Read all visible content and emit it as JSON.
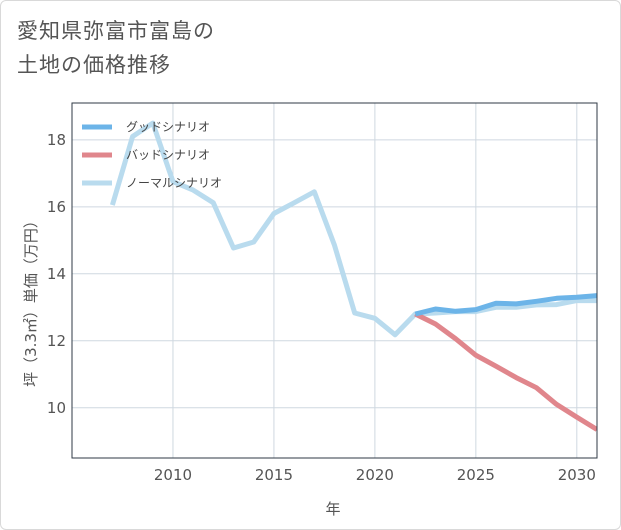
{
  "title": {
    "line1": "愛知県弥富市富島の",
    "line2": "土地の価格推移"
  },
  "chart_data": {
    "type": "line",
    "xlabel": "年",
    "ylabel": "坪（3.3㎡）単価（万円）",
    "xlim": [
      2005,
      2031
    ],
    "ylim": [
      8.5,
      19.1
    ],
    "x_ticks": [
      2010,
      2015,
      2020,
      2025,
      2030
    ],
    "y_ticks": [
      10,
      12,
      14,
      16,
      18
    ],
    "grid": true,
    "legend_position": "top-left",
    "series": [
      {
        "name": "グッドシナリオ",
        "color": "#6cb4e8",
        "x": [
          2022,
          2023,
          2024,
          2025,
          2026,
          2027,
          2028,
          2029,
          2030,
          2031
        ],
        "y": [
          12.8,
          12.95,
          12.88,
          12.93,
          13.12,
          13.1,
          13.18,
          13.27,
          13.3,
          13.35
        ]
      },
      {
        "name": "バッドシナリオ",
        "color": "#e0868c",
        "x": [
          2022,
          2023,
          2024,
          2025,
          2026,
          2027,
          2028,
          2029,
          2030,
          2031
        ],
        "y": [
          12.8,
          12.5,
          12.06,
          11.57,
          11.24,
          10.9,
          10.6,
          10.1,
          9.72,
          9.35
        ]
      },
      {
        "name": "ノーマルシナリオ",
        "color": "#b9dbee",
        "x": [
          2007,
          2008,
          2009,
          2010,
          2011,
          2012,
          2013,
          2014,
          2015,
          2016,
          2017,
          2018,
          2019,
          2020,
          2021,
          2022,
          2023,
          2024,
          2025,
          2026,
          2027,
          2028,
          2029,
          2030,
          2031
        ],
        "y": [
          16.05,
          18.1,
          18.5,
          16.75,
          16.5,
          16.12,
          14.77,
          14.95,
          15.8,
          16.12,
          16.45,
          14.85,
          12.83,
          12.67,
          12.18,
          12.8,
          12.83,
          12.87,
          12.87,
          13.0,
          13.0,
          13.07,
          13.08,
          13.2,
          13.2
        ]
      }
    ]
  }
}
